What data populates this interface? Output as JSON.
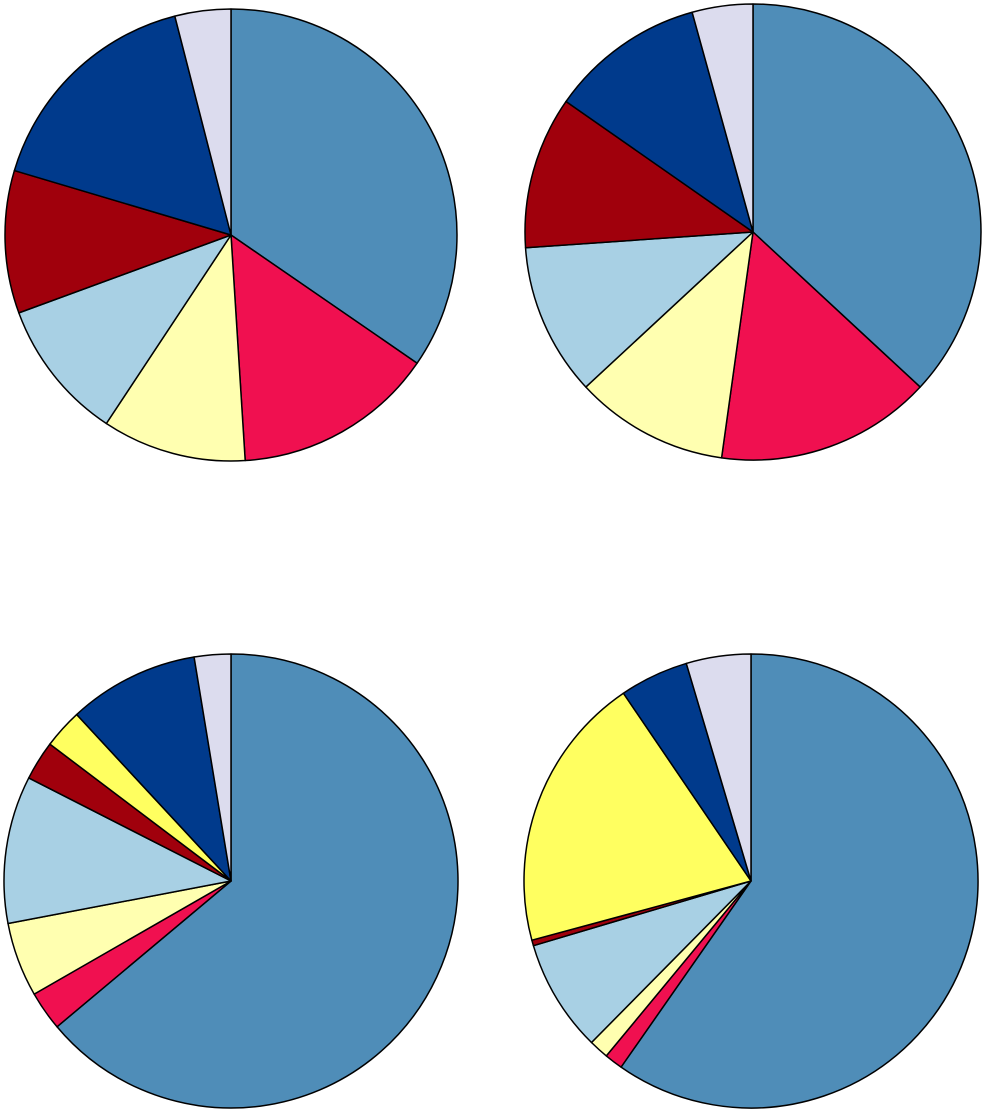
{
  "chart_data": [
    {
      "type": "pie",
      "values": [
        34.6,
        14.4,
        10.3,
        10.1,
        10.2,
        16.4,
        4.0
      ],
      "colors": [
        "#4f8db8",
        "#f01050",
        "#ffffb0",
        "#a8d0e4",
        "#a0000c",
        "#003a8c",
        "#dcdcee"
      ]
    },
    {
      "type": "pie",
      "values": [
        36.9,
        15.3,
        10.9,
        10.8,
        10.8,
        11.0,
        4.3
      ],
      "colors": [
        "#4f8db8",
        "#f01050",
        "#ffffb0",
        "#a8d0e4",
        "#a0000c",
        "#003a8c",
        "#dcdcee"
      ]
    },
    {
      "type": "pie",
      "values": [
        63.9,
        2.8,
        5.3,
        10.5,
        2.8,
        2.8,
        9.3,
        2.6
      ],
      "colors": [
        "#4f8db8",
        "#f01050",
        "#ffffb0",
        "#a8d0e4",
        "#a0000c",
        "#ffff60",
        "#003a8c",
        "#dcdcee"
      ]
    },
    {
      "type": "pie",
      "values": [
        59.7,
        1.3,
        1.4,
        8.0,
        0.4,
        19.7,
        4.9,
        4.6
      ],
      "colors": [
        "#4f8db8",
        "#f01050",
        "#ffffb0",
        "#a8d0e4",
        "#a0000c",
        "#ffff60",
        "#003a8c",
        "#dcdcee"
      ]
    }
  ]
}
